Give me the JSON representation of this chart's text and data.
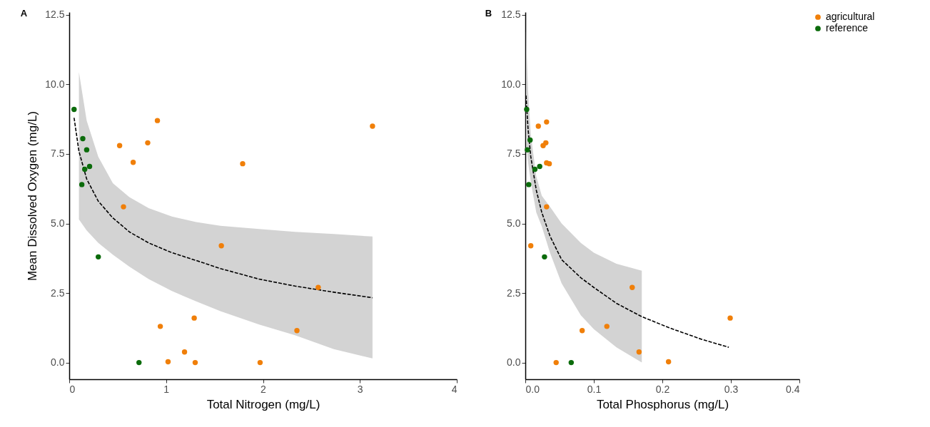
{
  "chart_data": [
    {
      "type": "scatter",
      "title": "A",
      "xlabel": "Total Nitrogen (mg/L)",
      "ylabel": "Mean Dissolved Oxygen (mg/L)",
      "xlim": [
        0,
        4
      ],
      "xticks": [
        0,
        1,
        2,
        3,
        4
      ],
      "ylim": [
        -0.6,
        12.6
      ],
      "yticks": [
        {
          "value": 0,
          "label": "0.0"
        },
        {
          "value": 2.5,
          "label": "2.5"
        },
        {
          "value": 5,
          "label": "5.0"
        },
        {
          "value": 7.5,
          "label": "7.5"
        },
        {
          "value": 10,
          "label": "10.0"
        },
        {
          "value": 12.5,
          "label": "12.5"
        }
      ],
      "grid": false,
      "legend": "right",
      "marker": "circle",
      "series": [
        {
          "type": "line",
          "color": "#000000",
          "line_style": "dashed",
          "marker": "none",
          "x": [
            0.05,
            0.1,
            0.18,
            0.3,
            0.45,
            0.62,
            0.82,
            1.06,
            1.31,
            1.56,
            1.96,
            2.33,
            2.73,
            3.13
          ],
          "values": [
            8.8,
            7.6,
            6.6,
            5.8,
            5.2,
            4.7,
            4.3,
            3.95,
            3.67,
            3.38,
            3.0,
            2.75,
            2.53,
            2.33
          ],
          "upper": [
            null,
            10.45,
            8.7,
            7.4,
            6.45,
            5.95,
            5.55,
            5.25,
            5.05,
            4.92,
            4.8,
            4.7,
            4.62,
            4.53
          ],
          "lower": [
            null,
            5.15,
            4.75,
            4.3,
            3.88,
            3.45,
            3.0,
            2.57,
            2.2,
            1.85,
            1.37,
            0.98,
            0.48,
            0.15
          ]
        },
        {
          "name": "agricultural",
          "color": "#f07f09",
          "x": [
            0.91,
            0.81,
            0.52,
            0.66,
            1.79,
            3.13,
            0.56,
            1.57,
            2.57,
            2.35,
            0.94,
            1.29,
            1.19,
            1.02,
            1.3,
            1.97
          ],
          "values": [
            8.7,
            7.9,
            7.8,
            7.2,
            7.15,
            8.5,
            5.6,
            4.2,
            2.7,
            1.15,
            1.3,
            1.6,
            0.38,
            0.03,
            0.0,
            0.0
          ]
        },
        {
          "name": "reference",
          "color": "#0b6b0b",
          "x": [
            0.05,
            0.14,
            0.18,
            0.21,
            0.16,
            0.13,
            0.3,
            0.72
          ],
          "values": [
            9.1,
            8.05,
            7.65,
            7.05,
            6.95,
            6.4,
            3.8,
            0.0
          ]
        }
      ]
    },
    {
      "type": "scatter",
      "title": "B",
      "xlabel": "Total Phosphorus (mg/L)",
      "xlim": [
        0,
        0.4
      ],
      "xticks": [
        {
          "value": 0,
          "label": "0.0"
        },
        0.1,
        0.2,
        0.3,
        0.4
      ],
      "ylim": [
        -0.6,
        12.6
      ],
      "yticks": [
        {
          "value": 0,
          "label": "0.0"
        },
        {
          "value": 2.5,
          "label": "2.5"
        },
        {
          "value": 5,
          "label": "5.0"
        },
        {
          "value": 7.5,
          "label": "7.5"
        },
        {
          "value": 10,
          "label": "10.0"
        },
        {
          "value": 12.5,
          "label": "12.5"
        }
      ],
      "grid": false,
      "legend": "right",
      "marker": "circle",
      "series": [
        {
          "type": "line",
          "color": "#000000",
          "line_style": "dashed",
          "marker": "none",
          "x": [
            0.001,
            0.004,
            0.008,
            0.016,
            0.024,
            0.036,
            0.053,
            0.081,
            0.1,
            0.133,
            0.17,
            0.21,
            0.258,
            0.297
          ],
          "values": [
            9.6,
            8.4,
            7.4,
            6.2,
            5.4,
            4.55,
            3.7,
            3.05,
            2.7,
            2.13,
            1.65,
            1.25,
            0.83,
            0.55
          ],
          "upper": [
            11.9,
            9.8,
            8.2,
            6.7,
            6.0,
            5.6,
            5.0,
            4.3,
            3.95,
            3.55,
            3.3,
            null,
            null,
            null
          ],
          "lower": [
            8.0,
            7.2,
            6.5,
            5.4,
            4.9,
            3.95,
            2.85,
            1.7,
            1.2,
            0.55,
            0.0,
            null,
            null,
            null
          ]
        },
        {
          "name": "agricultural",
          "color": "#f07f09",
          "x": [
            0.008,
            0.019,
            0.031,
            0.026,
            0.03,
            0.031,
            0.035,
            0.031,
            0.156,
            0.083,
            0.119,
            0.166,
            0.045,
            0.209,
            0.299
          ],
          "values": [
            4.2,
            8.5,
            8.65,
            7.8,
            7.9,
            7.18,
            7.15,
            5.6,
            2.7,
            1.15,
            1.3,
            0.38,
            0.0,
            0.03,
            1.6
          ]
        },
        {
          "name": "reference",
          "color": "#0b6b0b",
          "x": [
            0.002,
            0.007,
            0.003,
            0.014,
            0.021,
            0.005,
            0.028,
            0.067
          ],
          "values": [
            9.1,
            8.0,
            7.65,
            6.95,
            7.05,
            6.4,
            3.8,
            0.0
          ]
        }
      ]
    }
  ]
}
